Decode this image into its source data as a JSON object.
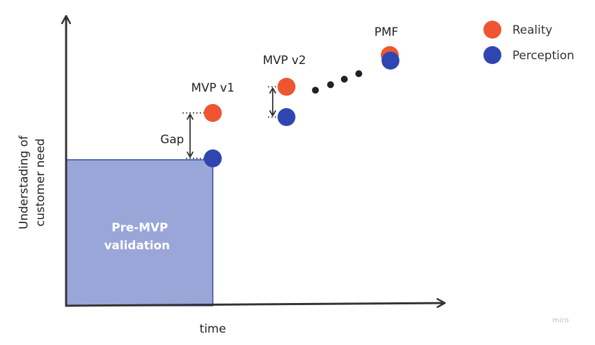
{
  "diagram": {
    "x_axis_label": "time",
    "y_axis_label_line1": "Understading of",
    "y_axis_label_line2": "customer need",
    "box_label_line1": "Pre-MVP",
    "box_label_line2": "validation",
    "gap_label": "Gap",
    "milestones": [
      {
        "label": "MVP v1"
      },
      {
        "label": "MVP v2"
      },
      {
        "label": "PMF"
      }
    ]
  },
  "legend": {
    "items": [
      {
        "label": "Reality",
        "color": "#ee5530"
      },
      {
        "label": "Perception",
        "color": "#2f46b0"
      }
    ]
  },
  "colors": {
    "reality": "#ee5530",
    "perception": "#2f46b0",
    "box_fill": "#9aa6d8",
    "box_stroke": "#3548a8",
    "axis": "#333333",
    "dots": "#222222"
  },
  "watermark": "miro"
}
